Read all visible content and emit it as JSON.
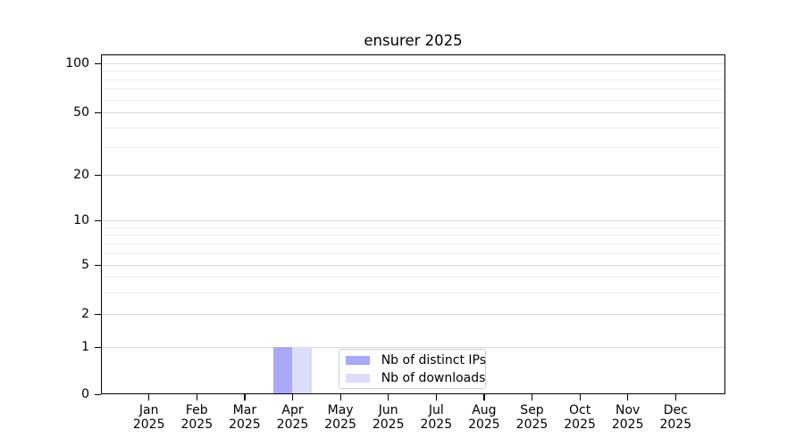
{
  "chart_data": {
    "type": "bar",
    "title": "ensurer 2025",
    "categories": [
      {
        "month": "Jan",
        "year": "2025"
      },
      {
        "month": "Feb",
        "year": "2025"
      },
      {
        "month": "Mar",
        "year": "2025"
      },
      {
        "month": "Apr",
        "year": "2025"
      },
      {
        "month": "May",
        "year": "2025"
      },
      {
        "month": "Jun",
        "year": "2025"
      },
      {
        "month": "Jul",
        "year": "2025"
      },
      {
        "month": "Aug",
        "year": "2025"
      },
      {
        "month": "Sep",
        "year": "2025"
      },
      {
        "month": "Oct",
        "year": "2025"
      },
      {
        "month": "Nov",
        "year": "2025"
      },
      {
        "month": "Dec",
        "year": "2025"
      }
    ],
    "series": [
      {
        "name": "Nb of distinct IPs",
        "color": "#a9a9f8",
        "values": [
          0,
          0,
          0,
          1,
          0,
          0,
          0,
          0,
          0,
          0,
          0,
          0
        ]
      },
      {
        "name": "Nb of downloads",
        "color": "#dcdcfb",
        "values": [
          0,
          0,
          0,
          1,
          0,
          0,
          0,
          0,
          0,
          0,
          0,
          0
        ]
      }
    ],
    "yticks": [
      0,
      1,
      2,
      5,
      10,
      20,
      50,
      100
    ],
    "minor_gridline_values": [
      3,
      4,
      6,
      7,
      8,
      9,
      30,
      40,
      60,
      70,
      80,
      90
    ],
    "ylim": [
      0,
      110
    ],
    "yscale": "symlog",
    "grid": true,
    "legend_position": "lower center inside",
    "colors": {
      "major_grid": "#d9d9d9",
      "minor_grid": "#ededed",
      "axis": "#000000",
      "background": "#ffffff"
    }
  }
}
